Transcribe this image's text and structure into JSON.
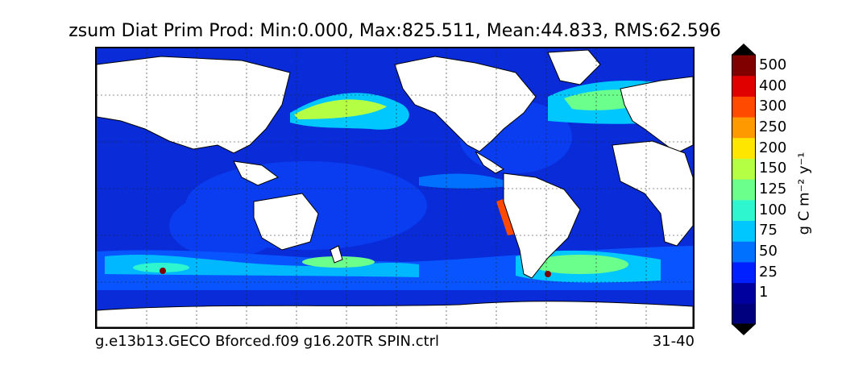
{
  "title": "zsum Diat Prim Prod: Min:0.000, Max:825.511, Mean:44.833, RMS:62.596",
  "footer": {
    "run_name": "g.e13b13.GECO Bforced.f09 g16.20TR SPIN.ctrl",
    "years": "31-40"
  },
  "colorbar": {
    "units": "g C m⁻² y⁻¹",
    "levels": [
      {
        "label": "",
        "color": "#00007f"
      },
      {
        "label": "1",
        "color": "#00009f"
      },
      {
        "label": "25",
        "color": "#0020ff"
      },
      {
        "label": "50",
        "color": "#0070ff"
      },
      {
        "label": "75",
        "color": "#00c8ff"
      },
      {
        "label": "100",
        "color": "#2ef7cf"
      },
      {
        "label": "125",
        "color": "#6bff8c"
      },
      {
        "label": "150",
        "color": "#b4ff44"
      },
      {
        "label": "200",
        "color": "#ffe600"
      },
      {
        "label": "250",
        "color": "#ff9900"
      },
      {
        "label": "300",
        "color": "#ff4a00"
      },
      {
        "label": "400",
        "color": "#e00000"
      },
      {
        "label": "500",
        "color": "#800000"
      }
    ],
    "under_color": "#000000",
    "over_color": "#000000"
  },
  "map": {
    "ocean_color": "#0a2bd8",
    "land_color": "#ffffff",
    "grid": true
  }
}
